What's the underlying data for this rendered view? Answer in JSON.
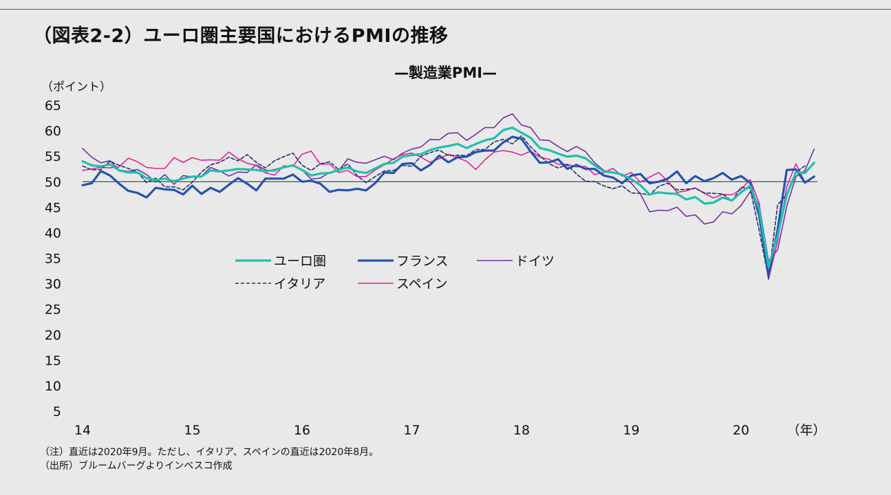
{
  "title": "（図表2-2）ユーロ圏主要国におけるPMIの推移",
  "chart_data": {
    "type": "line",
    "title": "—製造業PMI—",
    "ylabel": "（ポイント）",
    "xlabel": "（年）",
    "ylim": [
      5,
      65
    ],
    "yticks": [
      "5",
      "10",
      "15",
      "20",
      "25",
      "30",
      "35",
      "40",
      "45",
      "50",
      "55",
      "60",
      "65"
    ],
    "xticks": [
      "14",
      "15",
      "16",
      "17",
      "18",
      "19",
      "20"
    ],
    "reference_line": 50,
    "legend_position": "center-left",
    "x_start": "2014-01",
    "x_end": "2020-09",
    "series": [
      {
        "name": "ユーロ圏",
        "color": "#1fbfae",
        "style": "solid-thick",
        "values": [
          54.0,
          53.2,
          53.0,
          53.4,
          52.2,
          51.8,
          51.8,
          50.7,
          50.3,
          50.6,
          50.1,
          50.6,
          51.0,
          51.0,
          52.2,
          52.0,
          52.2,
          52.5,
          52.4,
          52.3,
          52.0,
          52.3,
          52.8,
          53.2,
          52.3,
          51.2,
          51.6,
          51.7,
          52.3,
          52.8,
          52.0,
          51.7,
          52.6,
          53.5,
          53.7,
          54.9,
          55.2,
          55.4,
          56.2,
          56.7,
          57.0,
          57.4,
          56.6,
          57.4,
          58.1,
          58.5,
          60.1,
          60.6,
          59.6,
          58.6,
          56.6,
          56.2,
          55.5,
          54.9,
          55.1,
          54.6,
          53.2,
          52.0,
          51.8,
          51.4,
          50.5,
          49.3,
          47.5,
          47.9,
          47.7,
          47.6,
          46.5,
          47.0,
          45.7,
          45.9,
          46.9,
          46.3,
          47.9,
          49.2,
          44.5,
          33.4,
          39.4,
          47.4,
          51.8,
          51.7,
          53.7
        ]
      },
      {
        "name": "フランス",
        "color": "#2452b0",
        "style": "solid-thick",
        "values": [
          49.3,
          49.7,
          52.1,
          51.2,
          49.6,
          48.2,
          47.8,
          46.9,
          48.8,
          48.5,
          48.4,
          47.5,
          49.2,
          47.6,
          48.8,
          48.0,
          49.4,
          50.7,
          49.6,
          48.3,
          50.6,
          50.6,
          50.6,
          51.4,
          50.0,
          50.2,
          49.6,
          48.0,
          48.4,
          48.3,
          48.6,
          48.3,
          49.7,
          51.8,
          51.7,
          53.5,
          53.6,
          52.2,
          53.3,
          55.1,
          53.8,
          54.8,
          54.9,
          55.8,
          56.1,
          56.1,
          57.7,
          58.8,
          58.4,
          55.9,
          53.7,
          53.8,
          54.4,
          52.5,
          53.3,
          52.5,
          52.5,
          51.2,
          50.8,
          49.7,
          51.2,
          51.5,
          49.7,
          50.0,
          50.6,
          52.0,
          49.7,
          51.1,
          50.1,
          50.7,
          51.7,
          50.4,
          51.1,
          49.8,
          43.2,
          31.5,
          40.6,
          52.3,
          52.4,
          49.8,
          51.0
        ]
      },
      {
        "name": "ドイツ",
        "color": "#7030a0",
        "style": "solid-thin",
        "values": [
          56.5,
          54.8,
          53.7,
          54.1,
          52.3,
          52.0,
          52.4,
          51.4,
          49.9,
          51.4,
          49.5,
          51.2,
          50.9,
          51.1,
          52.8,
          52.1,
          51.1,
          51.9,
          51.8,
          53.3,
          52.3,
          52.1,
          52.9,
          53.2,
          52.3,
          50.5,
          50.7,
          51.8,
          52.1,
          54.5,
          53.8,
          53.6,
          54.3,
          55.0,
          54.3,
          55.6,
          56.4,
          56.8,
          58.3,
          58.2,
          59.5,
          59.6,
          58.1,
          59.3,
          60.6,
          60.6,
          62.5,
          63.3,
          61.1,
          60.6,
          58.2,
          58.1,
          56.9,
          55.9,
          56.9,
          55.9,
          53.7,
          52.2,
          51.8,
          51.5,
          49.7,
          47.6,
          44.1,
          44.4,
          44.3,
          45.0,
          43.2,
          43.5,
          41.7,
          42.1,
          44.1,
          43.7,
          45.3,
          48.0,
          45.4,
          34.5,
          36.6,
          45.2,
          51.0,
          52.2,
          56.4
        ]
      },
      {
        "name": "イタリア",
        "color": "#1f2f66",
        "style": "dashed",
        "values": [
          53.1,
          52.3,
          52.4,
          54.0,
          53.2,
          52.6,
          51.9,
          49.8,
          50.7,
          49.0,
          49.0,
          48.4,
          49.9,
          51.9,
          53.3,
          53.8,
          54.8,
          54.1,
          55.3,
          53.8,
          52.7,
          54.1,
          54.9,
          55.6,
          53.2,
          52.2,
          53.5,
          53.9,
          52.4,
          53.5,
          51.2,
          49.8,
          51.0,
          52.1,
          52.2,
          53.2,
          53.0,
          55.0,
          55.7,
          56.2,
          55.1,
          55.2,
          55.1,
          56.3,
          56.3,
          57.8,
          58.3,
          57.4,
          59.0,
          56.8,
          55.1,
          53.5,
          52.7,
          53.3,
          51.5,
          50.1,
          50.0,
          49.2,
          48.6,
          49.2,
          47.8,
          47.7,
          47.4,
          49.1,
          49.7,
          48.4,
          48.5,
          48.7,
          47.8,
          47.7,
          47.6,
          46.2,
          48.9,
          48.7,
          40.3,
          31.1,
          45.4,
          47.5,
          51.9,
          53.1
        ]
      },
      {
        "name": "スペイン",
        "color": "#e0209a",
        "style": "solid-thin",
        "values": [
          52.2,
          52.5,
          52.8,
          52.7,
          52.9,
          54.6,
          53.9,
          52.8,
          52.6,
          52.6,
          54.7,
          53.8,
          54.7,
          54.2,
          54.3,
          54.2,
          55.8,
          54.5,
          53.6,
          53.2,
          51.7,
          51.3,
          53.1,
          53.0,
          55.4,
          56.0,
          53.4,
          53.5,
          51.8,
          52.2,
          51.0,
          51.0,
          52.3,
          53.3,
          54.5,
          55.3,
          55.6,
          54.8,
          53.8,
          54.5,
          55.4,
          54.7,
          54.0,
          52.4,
          54.3,
          55.8,
          56.1,
          55.8,
          55.2,
          56.0,
          54.8,
          54.4,
          53.4,
          53.4,
          52.9,
          53.0,
          51.4,
          51.8,
          52.6,
          51.1,
          51.8,
          49.9,
          50.9,
          51.8,
          50.1,
          47.9,
          48.2,
          48.8,
          47.7,
          46.8,
          47.5,
          47.4,
          48.5,
          50.4,
          45.7,
          30.8,
          38.3,
          49.0,
          53.5,
          49.9
        ]
      }
    ]
  },
  "legend": {
    "items": [
      "ユーロ圏",
      "フランス",
      "ドイツ",
      "イタリア",
      "スペイン"
    ]
  },
  "notes": [
    "（注）直近は2020年9月。ただし、イタリア、スペインの直近は2020年8月。",
    "（出所）ブルームバーグよりインベスコ作成"
  ]
}
